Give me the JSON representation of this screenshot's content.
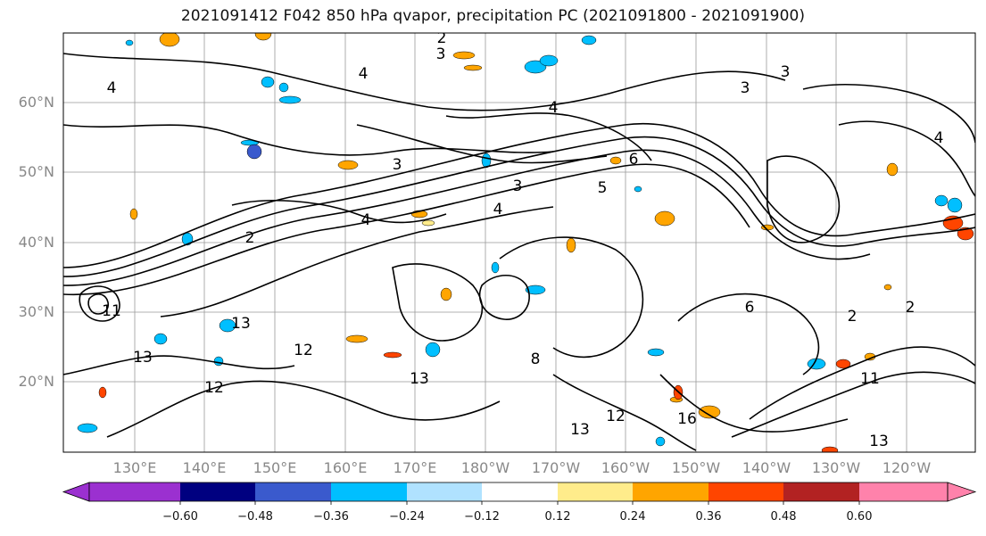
{
  "title": "2021091412 F042 850 hPa qvapor, precipitation PC (2021091800 - 2021091900)",
  "map": {
    "projection": "PlateCarree",
    "lon_range": [
      120,
      -110
    ],
    "lat_range": [
      10,
      70
    ],
    "gridlines": true,
    "coastlines": true,
    "lat_labels": [
      "60°N",
      "50°N",
      "40°N",
      "30°N",
      "20°N"
    ],
    "lon_labels": [
      "130°E",
      "140°E",
      "150°E",
      "160°E",
      "170°E",
      "180°W",
      "170°W",
      "160°W",
      "150°W",
      "140°W",
      "130°W",
      "120°W"
    ],
    "contour_field": "850 hPa qvapor",
    "contour_labels_visible": [
      "2",
      "3",
      "4",
      "5",
      "6",
      "8",
      "11",
      "12",
      "13",
      "16"
    ],
    "fill_field": "precipitation PC"
  },
  "colorbar": {
    "orientation": "horizontal",
    "extend": "both",
    "tick_labels": [
      "−0.60",
      "−0.48",
      "−0.36",
      "−0.24",
      "−0.12",
      "0.12",
      "0.24",
      "0.36",
      "0.48",
      "0.60"
    ],
    "colors": [
      "#9b30d0",
      "#000080",
      "#3a5acd",
      "#00bfff",
      "#b0e2ff",
      "#ffffff",
      "#ffec8b",
      "#ffa500",
      "#ff4500",
      "#b22222",
      "#ff82ab"
    ]
  }
}
